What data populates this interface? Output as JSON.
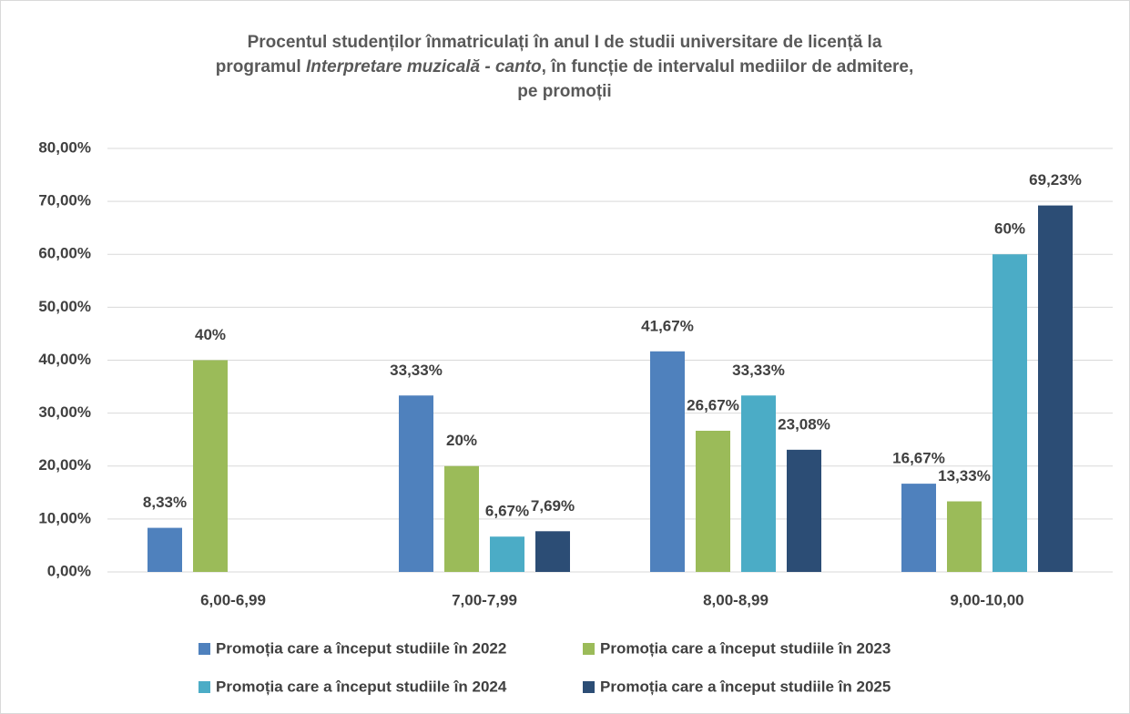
{
  "chart_data": {
    "type": "bar",
    "title": [
      [
        {
          "text": "Procentul studenților înmatriculați în anul I de studii universitare de licență la"
        }
      ],
      [
        {
          "text": "programul "
        },
        {
          "text": "Interpretare muzicală - canto",
          "italic": true
        },
        {
          "text": ", în funcție de intervalul mediilor de admitere,"
        }
      ],
      [
        {
          "text": "pe promoții"
        }
      ]
    ],
    "categories": [
      "6,00-6,99",
      "7,00-7,99",
      "8,00-8,99",
      "9,00-10,00"
    ],
    "series": [
      {
        "name": "Promoția care a început studiile în 2022",
        "color": "#4f81bd",
        "values": [
          8.33,
          33.33,
          41.67,
          16.67
        ],
        "value_labels": [
          "8,33%",
          "33,33%",
          "41,67%",
          "16,67%"
        ]
      },
      {
        "name": "Promoția care a început studiile în 2023",
        "color": "#9bbb59",
        "values": [
          40,
          20,
          26.67,
          13.33
        ],
        "value_labels": [
          "40%",
          "20%",
          "26,67%",
          "13,33%"
        ]
      },
      {
        "name": "Promoția care a început studiile în 2024",
        "color": "#4bacc6",
        "values": [
          null,
          6.67,
          33.33,
          60
        ],
        "value_labels": [
          null,
          "6,67%",
          "33,33%",
          "60%"
        ]
      },
      {
        "name": "Promoția care a început studiile în 2025",
        "color": "#2c4d75",
        "values": [
          null,
          7.69,
          23.08,
          69.23
        ],
        "value_labels": [
          null,
          "7,69%",
          "23,08%",
          "69,23%"
        ]
      }
    ],
    "ylim": [
      0,
      80
    ],
    "yticks": [
      {
        "value": 0,
        "label": "0,00%"
      },
      {
        "value": 10,
        "label": "10,00%"
      },
      {
        "value": 20,
        "label": "20,00%"
      },
      {
        "value": 30,
        "label": "30,00%"
      },
      {
        "value": 40,
        "label": "40,00%"
      },
      {
        "value": 50,
        "label": "50,00%"
      },
      {
        "value": 60,
        "label": "60,00%"
      },
      {
        "value": 70,
        "label": "70,00%"
      },
      {
        "value": 80,
        "label": "80,00%"
      }
    ],
    "grid": true,
    "legend": "bottom"
  }
}
